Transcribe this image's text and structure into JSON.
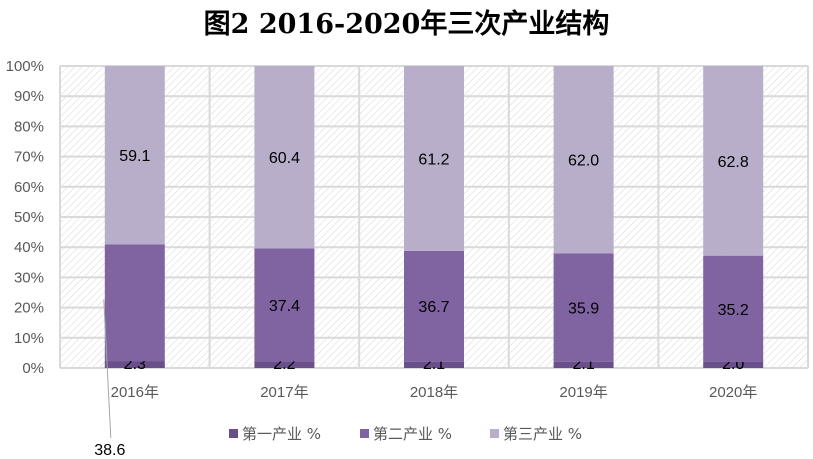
{
  "chart_data": {
    "type": "bar",
    "stacked": "percent",
    "title": "图2  2016-2020年三次产业结构",
    "categories": [
      "2016年",
      "2017年",
      "2018年",
      "2019年",
      "2020年"
    ],
    "series": [
      {
        "name": "第一产业 %",
        "values": [
          2.3,
          2.2,
          2.1,
          2.1,
          2.0
        ],
        "color": "#69508a"
      },
      {
        "name": "第二产业 %",
        "values": [
          38.6,
          37.4,
          36.7,
          35.9,
          35.2
        ],
        "color": "#8064a2"
      },
      {
        "name": "第三产业 %",
        "values": [
          59.1,
          60.4,
          61.2,
          62.0,
          62.8
        ],
        "color": "#b8aeca"
      }
    ],
    "y_ticks": [
      "0%",
      "10%",
      "20%",
      "30%",
      "40%",
      "50%",
      "60%",
      "70%",
      "80%",
      "90%",
      "100%"
    ],
    "ylim": [
      0,
      100
    ],
    "grid": true,
    "legend": "bottom",
    "plot_background": "diagonal hatch"
  }
}
